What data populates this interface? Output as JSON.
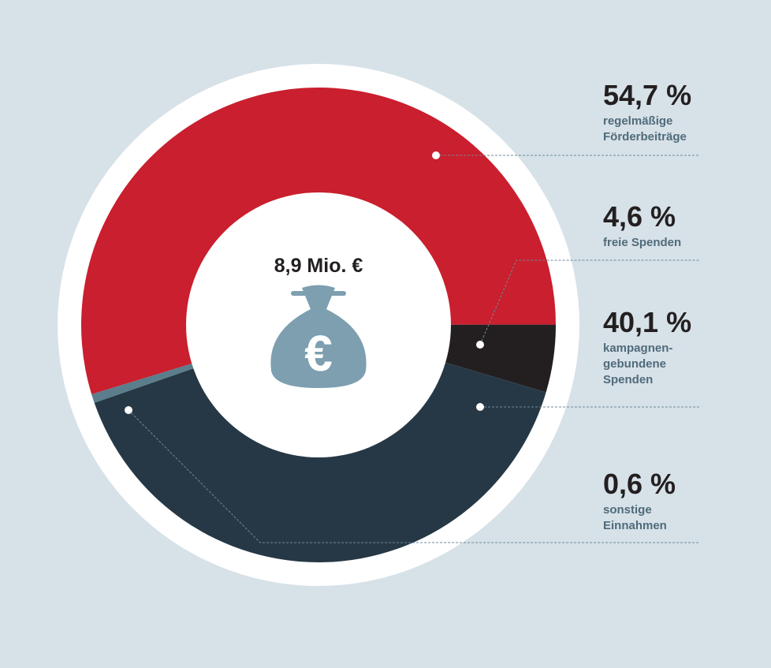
{
  "chart_data": {
    "type": "donut",
    "center_label": "8,9 Mio. €",
    "categories": [
      "regelmäßige\nFörderbeiträge",
      "freie Spenden",
      "kampagnen-\ngebundene\nSpenden",
      "sonstige\nEinnahmen"
    ],
    "values": [
      54.7,
      4.6,
      40.1,
      0.6
    ],
    "value_labels": [
      "54,7 %",
      "4,6 %",
      "40,1 %",
      "0,6 %"
    ],
    "colors": [
      "#c91f2e",
      "#231f20",
      "#263845",
      "#5b7d8c"
    ]
  }
}
